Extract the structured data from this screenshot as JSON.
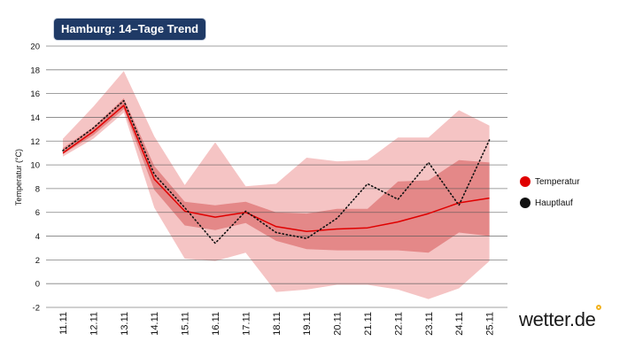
{
  "chart_data": {
    "type": "line",
    "title": "Hamburg: 14–Tage Trend",
    "ylabel": "Temperatur (°C)",
    "xlabel": "",
    "ylim": [
      -2,
      20
    ],
    "y_ticks": [
      -2,
      0,
      2,
      4,
      6,
      8,
      10,
      12,
      14,
      16,
      18,
      20
    ],
    "categories": [
      "11.11",
      "12.11",
      "13.11",
      "14.11",
      "15.11",
      "16.11",
      "17.11",
      "18.11",
      "19.11",
      "20.11",
      "21.11",
      "22.11",
      "23.11",
      "24.11",
      "25.11"
    ],
    "series": [
      {
        "name": "Temperatur",
        "color": "#e00000",
        "style": "solid",
        "values": [
          11.0,
          12.8,
          15.0,
          8.8,
          6.1,
          5.6,
          6.0,
          4.8,
          4.4,
          4.6,
          4.7,
          5.2,
          5.9,
          6.8,
          7.2
        ]
      },
      {
        "name": "Hauptlauf",
        "color": "#111111",
        "style": "dotted",
        "values": [
          11.2,
          13.1,
          15.4,
          9.2,
          6.4,
          3.4,
          6.1,
          4.3,
          3.8,
          5.5,
          8.4,
          7.1,
          10.2,
          6.6,
          12.1
        ]
      }
    ],
    "bands": [
      {
        "name": "outer",
        "color": "#f5c4c4",
        "upper": [
          12.2,
          14.9,
          17.9,
          12.4,
          8.3,
          11.9,
          8.2,
          8.4,
          10.6,
          10.3,
          10.4,
          12.3,
          12.3,
          14.6,
          13.3
        ],
        "lower": [
          10.7,
          12.2,
          14.4,
          6.4,
          2.1,
          1.9,
          2.6,
          -0.7,
          -0.5,
          -0.1,
          -0.1,
          -0.5,
          -1.3,
          -0.4,
          1.9
        ]
      },
      {
        "name": "inner",
        "color": "#e48888",
        "upper": [
          11.4,
          13.2,
          15.6,
          9.9,
          6.9,
          6.6,
          6.9,
          6.0,
          5.9,
          6.3,
          6.3,
          8.6,
          8.7,
          10.4,
          10.2
        ],
        "lower": [
          10.9,
          12.5,
          14.7,
          7.9,
          4.9,
          4.5,
          5.1,
          3.6,
          2.9,
          2.8,
          2.8,
          2.8,
          2.6,
          4.3,
          4.0
        ]
      }
    ],
    "legend": [
      {
        "label": "Temperatur",
        "color": "#e00000"
      },
      {
        "label": "Hauptlauf",
        "color": "#111111"
      }
    ],
    "legend_position": "right",
    "grid": true
  },
  "brand": "wetter.de"
}
